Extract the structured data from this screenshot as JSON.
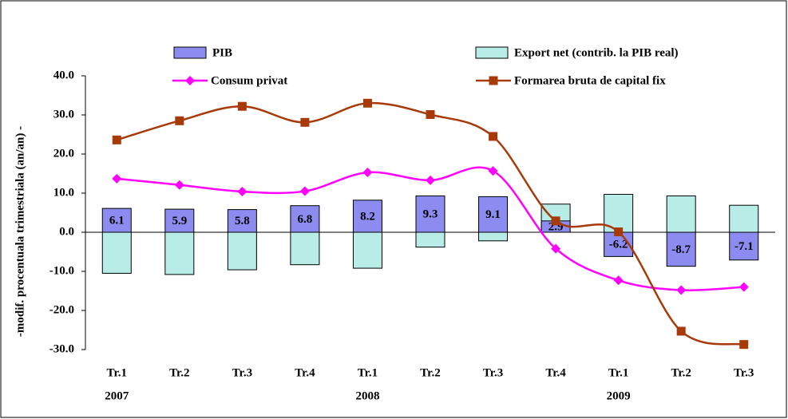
{
  "chart_data": {
    "type": "bar-line",
    "y_label": "-modif. procentuala trimestriala (an/an) -",
    "categories": [
      "Tr.1",
      "Tr.2",
      "Tr.3",
      "Tr.4",
      "Tr.1",
      "Tr.2",
      "Tr.3",
      "Tr.4",
      "Tr.1",
      "Tr.2",
      "Tr.3"
    ],
    "x_groups": [
      {
        "label": "2007",
        "from": 0,
        "to": 3
      },
      {
        "label": "2008",
        "from": 4,
        "to": 7
      },
      {
        "label": "2009",
        "from": 8,
        "to": 10
      }
    ],
    "ylim": [
      -30,
      40
    ],
    "yticks": [
      {
        "value": -30,
        "label": "-30.0"
      },
      {
        "value": -20,
        "label": "-20.0"
      },
      {
        "value": -10,
        "label": "-10.0"
      },
      {
        "value": 0,
        "label": "0.0"
      },
      {
        "value": 10,
        "label": "10.0"
      },
      {
        "value": 20,
        "label": "20.0"
      },
      {
        "value": 30,
        "label": "30.0"
      },
      {
        "value": 40,
        "label": "40.0"
      }
    ],
    "series": [
      {
        "name": "Export net (contrib. la PIB real)",
        "type": "bar",
        "color": "#b8ece6",
        "values": [
          -10.5,
          -10.8,
          -9.6,
          -8.3,
          -9.2,
          -3.8,
          -2.2,
          7.2,
          9.7,
          9.3,
          6.9
        ]
      },
      {
        "name": "PIB",
        "type": "bar",
        "color": "#8c8cf0",
        "data_labels": true,
        "values": [
          6.1,
          5.9,
          5.8,
          6.8,
          8.2,
          9.3,
          9.1,
          2.9,
          -6.2,
          -8.7,
          -7.1
        ]
      },
      {
        "name": "Consum privat",
        "type": "line",
        "marker": "diamond",
        "color": "#ff00ff",
        "values": [
          13.7,
          12.1,
          10.4,
          10.5,
          15.3,
          13.3,
          15.7,
          -4.2,
          -12.3,
          -14.8,
          -14.0
        ]
      },
      {
        "name": "Formarea bruta de capital fix",
        "type": "line",
        "marker": "square",
        "color": "#a83a0a",
        "values": [
          23.6,
          28.5,
          32.2,
          28.1,
          33.0,
          30.1,
          24.5,
          2.9,
          0.1,
          -25.3,
          -28.7
        ]
      }
    ]
  }
}
